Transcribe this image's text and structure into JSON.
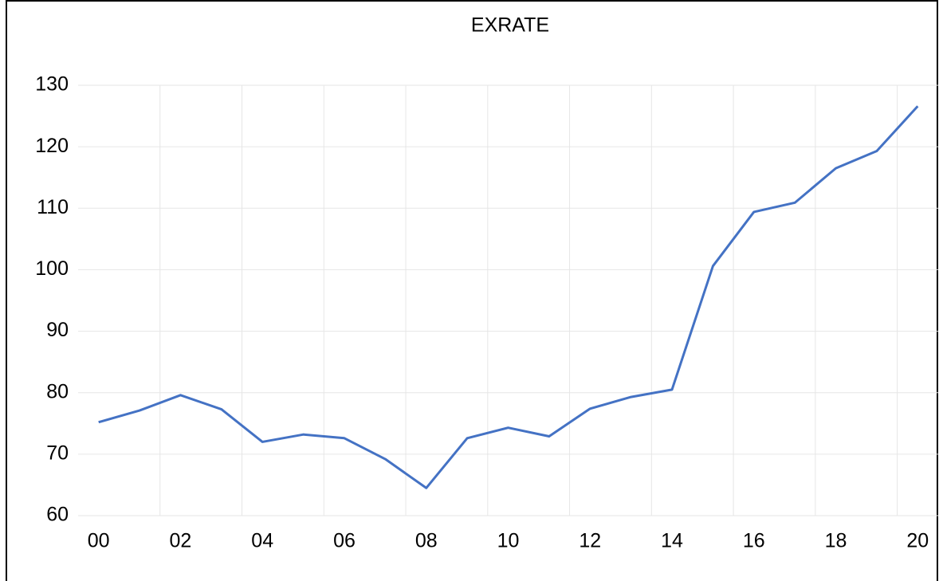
{
  "chart_data": {
    "type": "line",
    "title": "EXRATE",
    "categories": [
      "00",
      null,
      "02",
      null,
      "04",
      null,
      "06",
      null,
      "08",
      null,
      "10",
      null,
      "12",
      null,
      "14",
      null,
      "16",
      null,
      "18",
      null,
      "20"
    ],
    "series": [
      {
        "name": "EXRATE",
        "color": "#4472c4",
        "values": [
          75.2,
          77.1,
          79.6,
          77.3,
          72.0,
          73.2,
          72.6,
          69.2,
          64.5,
          72.6,
          74.3,
          72.9,
          77.4,
          79.3,
          80.5,
          100.6,
          109.4,
          110.9,
          116.5,
          119.3,
          126.6
        ]
      }
    ],
    "ylim": [
      60,
      130
    ],
    "yticks": [
      60,
      70,
      80,
      90,
      100,
      110,
      120,
      130
    ],
    "grid": true
  }
}
